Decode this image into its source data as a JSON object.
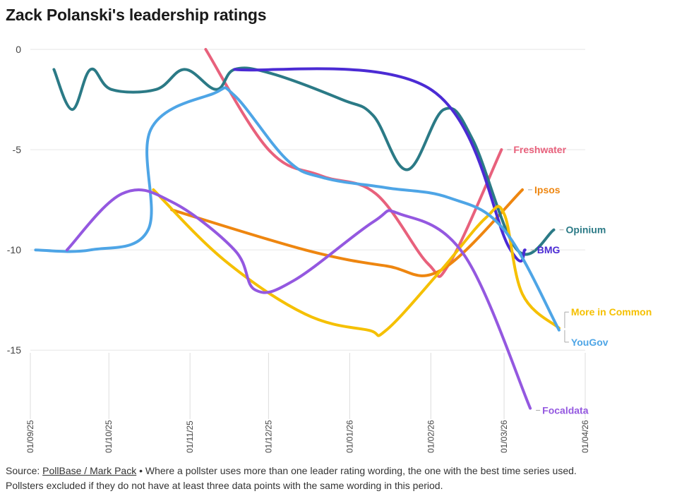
{
  "title": "Zack Polanski's leadership ratings",
  "footer": {
    "source_prefix": "Source: ",
    "source_link": "PollBase / Mark Pack",
    "bullet": " • ",
    "note_line1": "Where a pollster uses more than one leader rating wording, the one with the best time series used.",
    "note_line2": "Pollsters excluded if they do not have at least three data points with the same wording in this period."
  },
  "chart_data": {
    "type": "line",
    "title": "Zack Polanski's leadership ratings",
    "xlabel": "",
    "ylabel": "",
    "x_domain": [
      "2025-09-01",
      "2026-04-01"
    ],
    "ylim": [
      -18.3,
      0
    ],
    "y_ticks": [
      0,
      -5,
      -10,
      -15
    ],
    "y_tick_labels": [
      "0",
      "-5",
      "-10",
      "-15"
    ],
    "x_ticks": [
      "2025-09-01",
      "2025-10-01",
      "2025-11-01",
      "2025-12-01",
      "2026-01-01",
      "2026-02-01",
      "2026-03-01",
      "2026-04-01"
    ],
    "x_tick_labels": [
      "01/09/25",
      "01/10/25",
      "01/11/25",
      "01/12/25",
      "01/01/26",
      "01/02/26",
      "01/03/26",
      "01/04/26"
    ],
    "grid": true,
    "legend": "direct labels at line ends",
    "series": [
      {
        "name": "Freshwater",
        "color": "#e8617c",
        "points": [
          [
            "2025-11-07",
            0
          ],
          [
            "2025-12-01",
            -5
          ],
          [
            "2025-12-21",
            -6.3
          ],
          [
            "2026-01-11",
            -7.2
          ],
          [
            "2026-01-31",
            -10.7
          ],
          [
            "2026-02-08",
            -10.7
          ],
          [
            "2026-02-28",
            -5
          ]
        ]
      },
      {
        "name": "Ipsos",
        "color": "#ee8610",
        "points": [
          [
            "2025-10-25",
            -8
          ],
          [
            "2025-12-15",
            -10
          ],
          [
            "2026-01-15",
            -10.8
          ],
          [
            "2026-02-05",
            -11
          ],
          [
            "2026-03-08",
            -7
          ]
        ]
      },
      {
        "name": "Opinium",
        "color": "#2b7a86",
        "points": [
          [
            "2025-09-10",
            -1
          ],
          [
            "2025-09-17",
            -3
          ],
          [
            "2025-09-24",
            -1
          ],
          [
            "2025-10-02",
            -2
          ],
          [
            "2025-10-19",
            -2
          ],
          [
            "2025-10-30",
            -1
          ],
          [
            "2025-11-11",
            -2
          ],
          [
            "2025-11-18",
            -1
          ],
          [
            "2025-12-02",
            -1.2
          ],
          [
            "2025-12-29",
            -2.5
          ],
          [
            "2026-01-10",
            -3.3
          ],
          [
            "2026-01-23",
            -6
          ],
          [
            "2026-02-06",
            -3
          ],
          [
            "2026-02-17",
            -4.5
          ],
          [
            "2026-03-06",
            -10
          ],
          [
            "2026-03-20",
            -9
          ]
        ]
      },
      {
        "name": "BMG",
        "color": "#4b2bd4",
        "points": [
          [
            "2025-11-18",
            -1
          ],
          [
            "2026-02-01",
            -2
          ],
          [
            "2026-03-03",
            -9.9
          ],
          [
            "2026-03-09",
            -10
          ]
        ]
      },
      {
        "name": "More in Common",
        "color": "#f5c000",
        "points": [
          [
            "2025-10-18",
            -7
          ],
          [
            "2025-11-14",
            -10.5
          ],
          [
            "2025-12-15",
            -13.2
          ],
          [
            "2026-01-08",
            -14
          ],
          [
            "2026-01-15",
            -14
          ],
          [
            "2026-02-05",
            -11
          ],
          [
            "2026-02-22",
            -8.4
          ],
          [
            "2026-03-01",
            -8.2
          ],
          [
            "2026-03-08",
            -12.2
          ],
          [
            "2026-03-22",
            -13.9
          ]
        ]
      },
      {
        "name": "YouGov",
        "color": "#4ea5e6",
        "points": [
          [
            "2025-09-03",
            -10
          ],
          [
            "2025-09-24",
            -10
          ],
          [
            "2025-10-16",
            -9
          ],
          [
            "2025-10-17",
            -4
          ],
          [
            "2025-11-10",
            -2.2
          ],
          [
            "2025-11-18",
            -2.3
          ],
          [
            "2025-12-08",
            -5.5
          ],
          [
            "2025-12-22",
            -6.4
          ],
          [
            "2026-01-15",
            -6.9
          ],
          [
            "2026-02-08",
            -7.4
          ],
          [
            "2026-03-01",
            -9
          ],
          [
            "2026-03-22",
            -14
          ]
        ]
      },
      {
        "name": "Focaldata",
        "color": "#9458e0",
        "points": [
          [
            "2025-09-15",
            -10
          ],
          [
            "2025-10-06",
            -7.2
          ],
          [
            "2025-10-25",
            -7.6
          ],
          [
            "2025-11-18",
            -10
          ],
          [
            "2025-11-26",
            -12
          ],
          [
            "2025-12-11",
            -11.5
          ],
          [
            "2026-01-10",
            -8.6
          ],
          [
            "2026-01-20",
            -8.2
          ],
          [
            "2026-02-14",
            -10.3
          ],
          [
            "2026-03-11",
            -17.9
          ]
        ]
      }
    ],
    "end_labels": [
      {
        "text": "Freshwater",
        "series": "Freshwater",
        "anchor_y": -5
      },
      {
        "text": "Ipsos",
        "series": "Ipsos",
        "anchor_y": -7
      },
      {
        "text": "Opinium",
        "series": "Opinium",
        "anchor_y": -9
      },
      {
        "text": "BMG",
        "series": "BMG",
        "anchor_y": -10
      },
      {
        "text": "More in Common",
        "series": "More in Common",
        "anchor_y": -13.1
      },
      {
        "text": "YouGov",
        "series": "YouGov",
        "anchor_y": -14.6
      },
      {
        "text": "Focaldata",
        "series": "Focaldata",
        "anchor_y": -18
      }
    ]
  }
}
